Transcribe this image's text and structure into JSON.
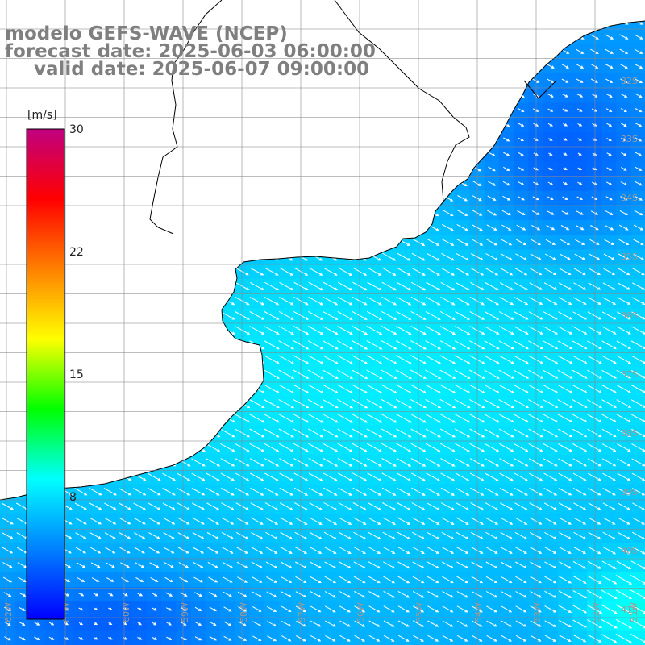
{
  "title": {
    "line1": "modelo GEFS-WAVE (NCEP)",
    "line2": "forecast date: 2025-06-03 06:00:00",
    "line3": "valid date: 2025-06-07 09:00:00"
  },
  "colorbar": {
    "unit": "[m/s]",
    "min": 0,
    "max": 30,
    "ticks": [
      {
        "value": 30,
        "label": "30"
      },
      {
        "value": 22,
        "label": "22"
      },
      {
        "value": 15,
        "label": "15"
      },
      {
        "value": 8,
        "label": "8"
      }
    ],
    "stops": [
      "#0000ff",
      "#0080ff",
      "#00ffff",
      "#00ff00",
      "#ffff00",
      "#ff8000",
      "#ff0000",
      "#c00080"
    ]
  },
  "map": {
    "lon_range": [
      -62,
      -51
    ],
    "lat_range": [
      -41.5,
      -30.5
    ],
    "lon_labels": [
      "62W",
      "61W",
      "60W",
      "59W",
      "58W",
      "57W",
      "56W",
      "55W",
      "54W",
      "53W",
      "52W",
      "51W"
    ],
    "lat_labels": [
      "32S",
      "33S",
      "34S",
      "35S",
      "36S",
      "37S",
      "38S",
      "39S",
      "40S",
      "41S"
    ],
    "wind_direction": "toward southeast",
    "colors": {
      "land": "#ffffff",
      "coastline": "#000000",
      "grid": "#888888",
      "arrow": "#ffffff",
      "calm": "#0022ee",
      "moderate": "#0070ff",
      "strong": "#00c8ff",
      "peak": "#00ee90"
    }
  }
}
